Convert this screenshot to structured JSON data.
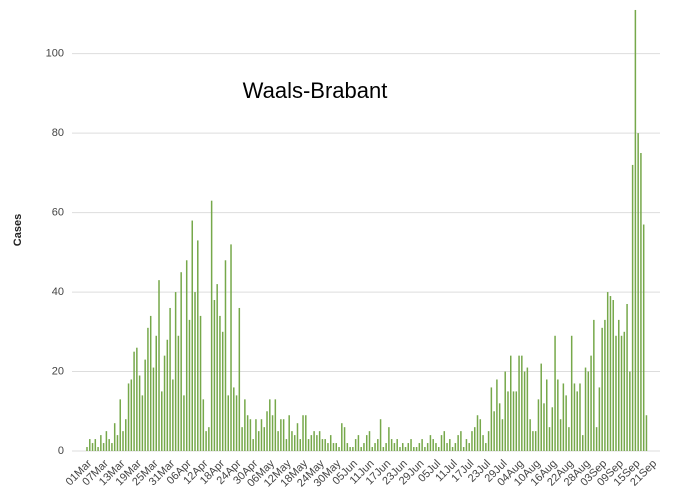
{
  "chart_data": {
    "type": "bar",
    "title": "Waals-Brabant",
    "ylabel": "Cases",
    "color": "#76a84a",
    "categories": [
      "01Mar",
      null,
      null,
      null,
      null,
      null,
      "07Mar",
      null,
      null,
      null,
      null,
      null,
      "13Mar",
      null,
      null,
      null,
      null,
      null,
      "19Mar",
      null,
      null,
      null,
      null,
      null,
      "25Mar",
      null,
      null,
      null,
      null,
      null,
      "31Mar",
      null,
      null,
      null,
      null,
      null,
      "06Apr",
      null,
      null,
      null,
      null,
      null,
      "12Apr",
      null,
      null,
      null,
      null,
      null,
      "18Apr",
      null,
      null,
      null,
      null,
      null,
      "24Apr",
      null,
      null,
      null,
      null,
      null,
      "30Apr",
      null,
      null,
      null,
      null,
      null,
      "06May",
      null,
      null,
      null,
      null,
      null,
      "12May",
      null,
      null,
      null,
      null,
      null,
      "18May",
      null,
      null,
      null,
      null,
      null,
      "24May",
      null,
      null,
      null,
      null,
      null,
      "30May",
      null,
      null,
      null,
      null,
      null,
      "05Jun",
      null,
      null,
      null,
      null,
      null,
      "11Jun",
      null,
      null,
      null,
      null,
      null,
      "17Jun",
      null,
      null,
      null,
      null,
      null,
      "23Jun",
      null,
      null,
      null,
      null,
      null,
      "29Jun",
      null,
      null,
      null,
      null,
      null,
      "05Jul",
      null,
      null,
      null,
      null,
      null,
      "11Jul",
      null,
      null,
      null,
      null,
      null,
      "17Jul",
      null,
      null,
      null,
      null,
      null,
      "23Jul",
      null,
      null,
      null,
      null,
      null,
      "29Jul",
      null,
      null,
      null,
      null,
      null,
      "04Aug",
      null,
      null,
      null,
      null,
      null,
      "10Aug",
      null,
      null,
      null,
      null,
      null,
      "16Aug",
      null,
      null,
      null,
      null,
      null,
      "22Aug",
      null,
      null,
      null,
      null,
      null,
      "28Aug",
      null,
      null,
      null,
      null,
      null,
      "03Sep",
      null,
      null,
      null,
      null,
      null,
      "09Sep",
      null,
      null,
      null,
      null,
      null,
      "15Sep",
      null,
      null,
      null,
      null,
      null,
      "21Sep"
    ],
    "values": [
      1,
      3,
      2,
      3,
      1,
      4,
      2,
      5,
      3,
      2,
      7,
      4,
      13,
      5,
      8,
      17,
      18,
      25,
      26,
      19,
      14,
      23,
      31,
      34,
      21,
      29,
      43,
      15,
      24,
      28,
      36,
      18,
      40,
      29,
      45,
      14,
      48,
      33,
      58,
      40,
      53,
      34,
      13,
      5,
      6,
      63,
      38,
      42,
      34,
      30,
      48,
      14,
      52,
      16,
      14,
      36,
      6,
      13,
      9,
      8,
      3,
      8,
      5,
      8,
      6,
      10,
      13,
      9,
      13,
      5,
      8,
      8,
      3,
      9,
      5,
      4,
      7,
      3,
      9,
      9,
      3,
      4,
      5,
      4,
      5,
      3,
      3,
      2,
      4,
      2,
      2,
      1,
      7,
      6,
      2,
      1,
      1,
      3,
      4,
      1,
      2,
      4,
      5,
      1,
      2,
      3,
      8,
      1,
      2,
      6,
      3,
      2,
      3,
      1,
      2,
      1,
      2,
      3,
      1,
      1,
      2,
      3,
      1,
      2,
      4,
      3,
      2,
      1,
      4,
      5,
      2,
      3,
      1,
      2,
      4,
      5,
      1,
      3,
      2,
      5,
      6,
      9,
      8,
      4,
      2,
      5,
      16,
      10,
      18,
      12,
      8,
      20,
      15,
      24,
      15,
      15,
      24,
      24,
      20,
      21,
      8,
      5,
      5,
      13,
      22,
      12,
      18,
      6,
      11,
      29,
      18,
      8,
      17,
      14,
      6,
      29,
      17,
      15,
      17,
      4,
      21,
      20,
      24,
      33,
      6,
      16,
      31,
      33,
      40,
      39,
      38,
      29,
      33,
      29,
      30,
      37,
      20,
      72,
      111,
      80,
      75,
      57,
      9,
      0,
      0
    ],
    "ylim": [
      0,
      112
    ],
    "yticks": [
      0,
      20,
      40,
      60,
      80,
      100
    ],
    "grid": true
  }
}
